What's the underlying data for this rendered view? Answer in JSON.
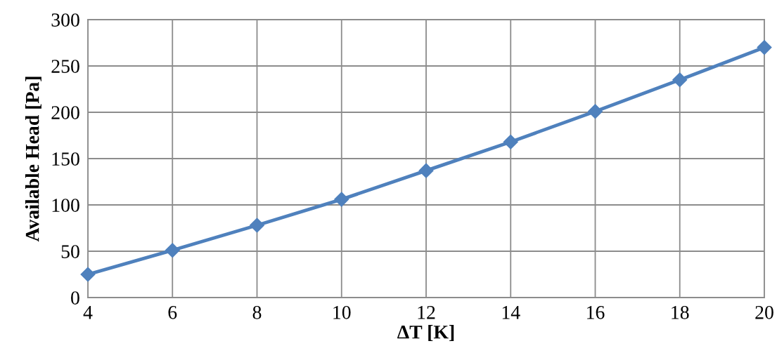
{
  "chart_data": {
    "type": "line",
    "xlabel": "ΔT [K]",
    "ylabel": "Available Head [Pa]",
    "x": [
      4,
      6,
      8,
      10,
      12,
      14,
      16,
      18,
      20
    ],
    "series": [
      {
        "color": "#4f81bd",
        "values": [
          25,
          51,
          78,
          106,
          137,
          168,
          201,
          235,
          270
        ]
      }
    ],
    "xlim": [
      4,
      20
    ],
    "xticks": [
      4,
      6,
      8,
      10,
      12,
      14,
      16,
      18,
      20
    ],
    "ylim": [
      0,
      300
    ],
    "yticks": [
      0,
      50,
      100,
      150,
      200,
      250,
      300
    ],
    "grid": true,
    "marker": "diamond",
    "line_style": "solid",
    "legend": false
  }
}
